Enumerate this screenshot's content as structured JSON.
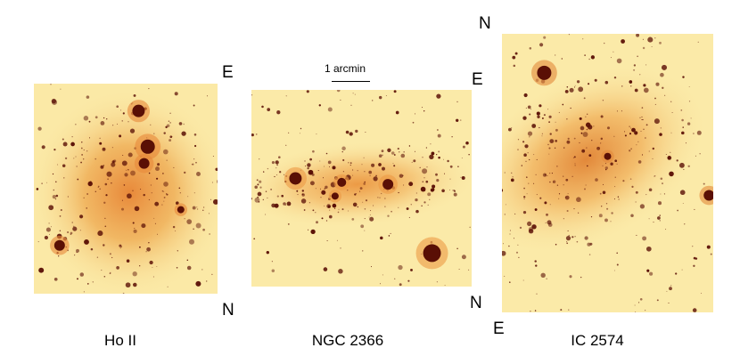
{
  "panels": [
    {
      "id": "hoii",
      "caption": "Ho II",
      "labels": [
        "E",
        "N"
      ],
      "colors": {
        "bg": "#fbe9a6",
        "core": "#e8893a",
        "mid": "#f0b25c",
        "star": "#5a0f05"
      }
    },
    {
      "id": "ngc2366",
      "caption": "NGC 2366",
      "labels": [
        "E",
        "N"
      ],
      "colors": {
        "bg": "#fbeaa8",
        "core": "#ec9a45",
        "mid": "#f4c172",
        "star": "#5a0f05"
      }
    },
    {
      "id": "ic2574",
      "caption": "IC 2574",
      "labels": [
        "N",
        "E"
      ],
      "colors": {
        "bg": "#fbeaa8",
        "core": "#e2883a",
        "mid": "#f2b865",
        "star": "#5a0f05"
      }
    }
  ],
  "scale": {
    "label": "1 arcmin"
  }
}
